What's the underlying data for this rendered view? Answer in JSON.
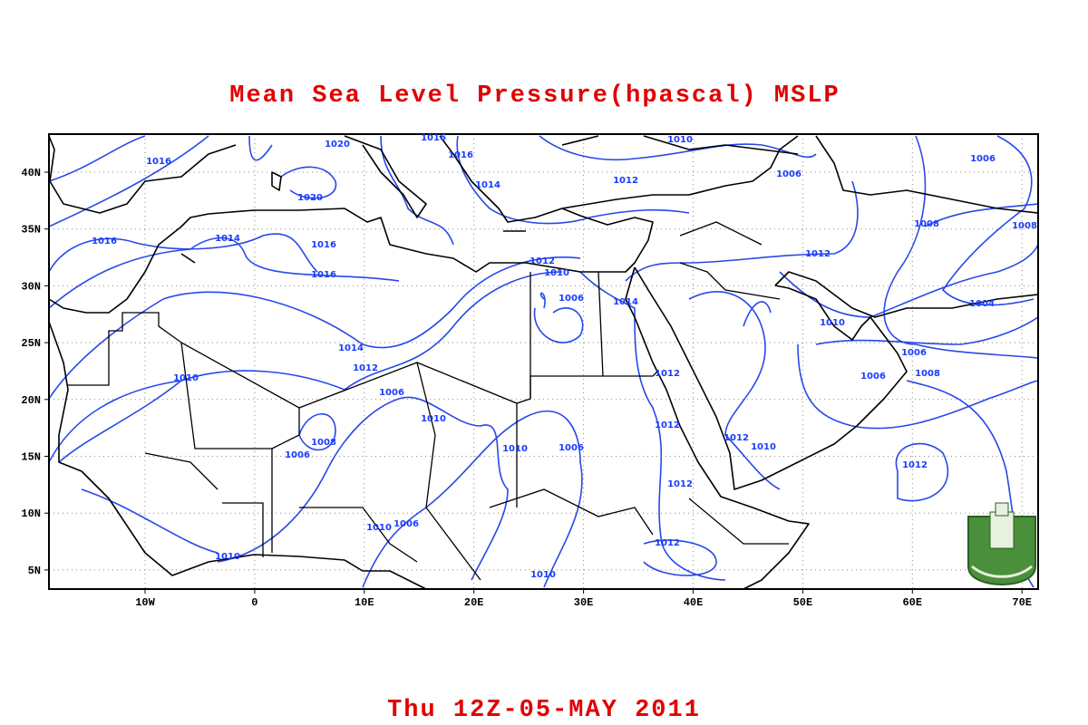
{
  "title": "Mean Sea Level Pressure(hpascal) MSLP",
  "date": "Thu 12Z-05-MAY 2011",
  "map": {
    "x_labels": [
      "10W",
      "0",
      "10E",
      "20E",
      "30E",
      "40E",
      "50E",
      "60E",
      "70E"
    ],
    "y_labels": [
      "40N",
      "35N",
      "30N",
      "25N",
      "20N",
      "15N",
      "10N",
      "5N"
    ],
    "contour_labels": [
      "1020",
      "1016",
      "1010",
      "1016",
      "1016",
      "1020",
      "1014",
      "1012",
      "1006",
      "1006",
      "1016",
      "1014",
      "1016",
      "1008",
      "1008",
      "1012",
      "1010",
      "1012",
      "1016",
      "1006",
      "1014",
      "1004",
      "1010",
      "1014",
      "1006",
      "1012",
      "1012",
      "1006",
      "1008",
      "1010",
      "1006",
      "1010",
      "1012",
      "1008",
      "1012",
      "1010",
      "1010",
      "1006",
      "1006",
      "1012",
      "1012",
      "1010",
      "1006",
      "1012",
      "1010",
      "1010"
    ]
  }
}
